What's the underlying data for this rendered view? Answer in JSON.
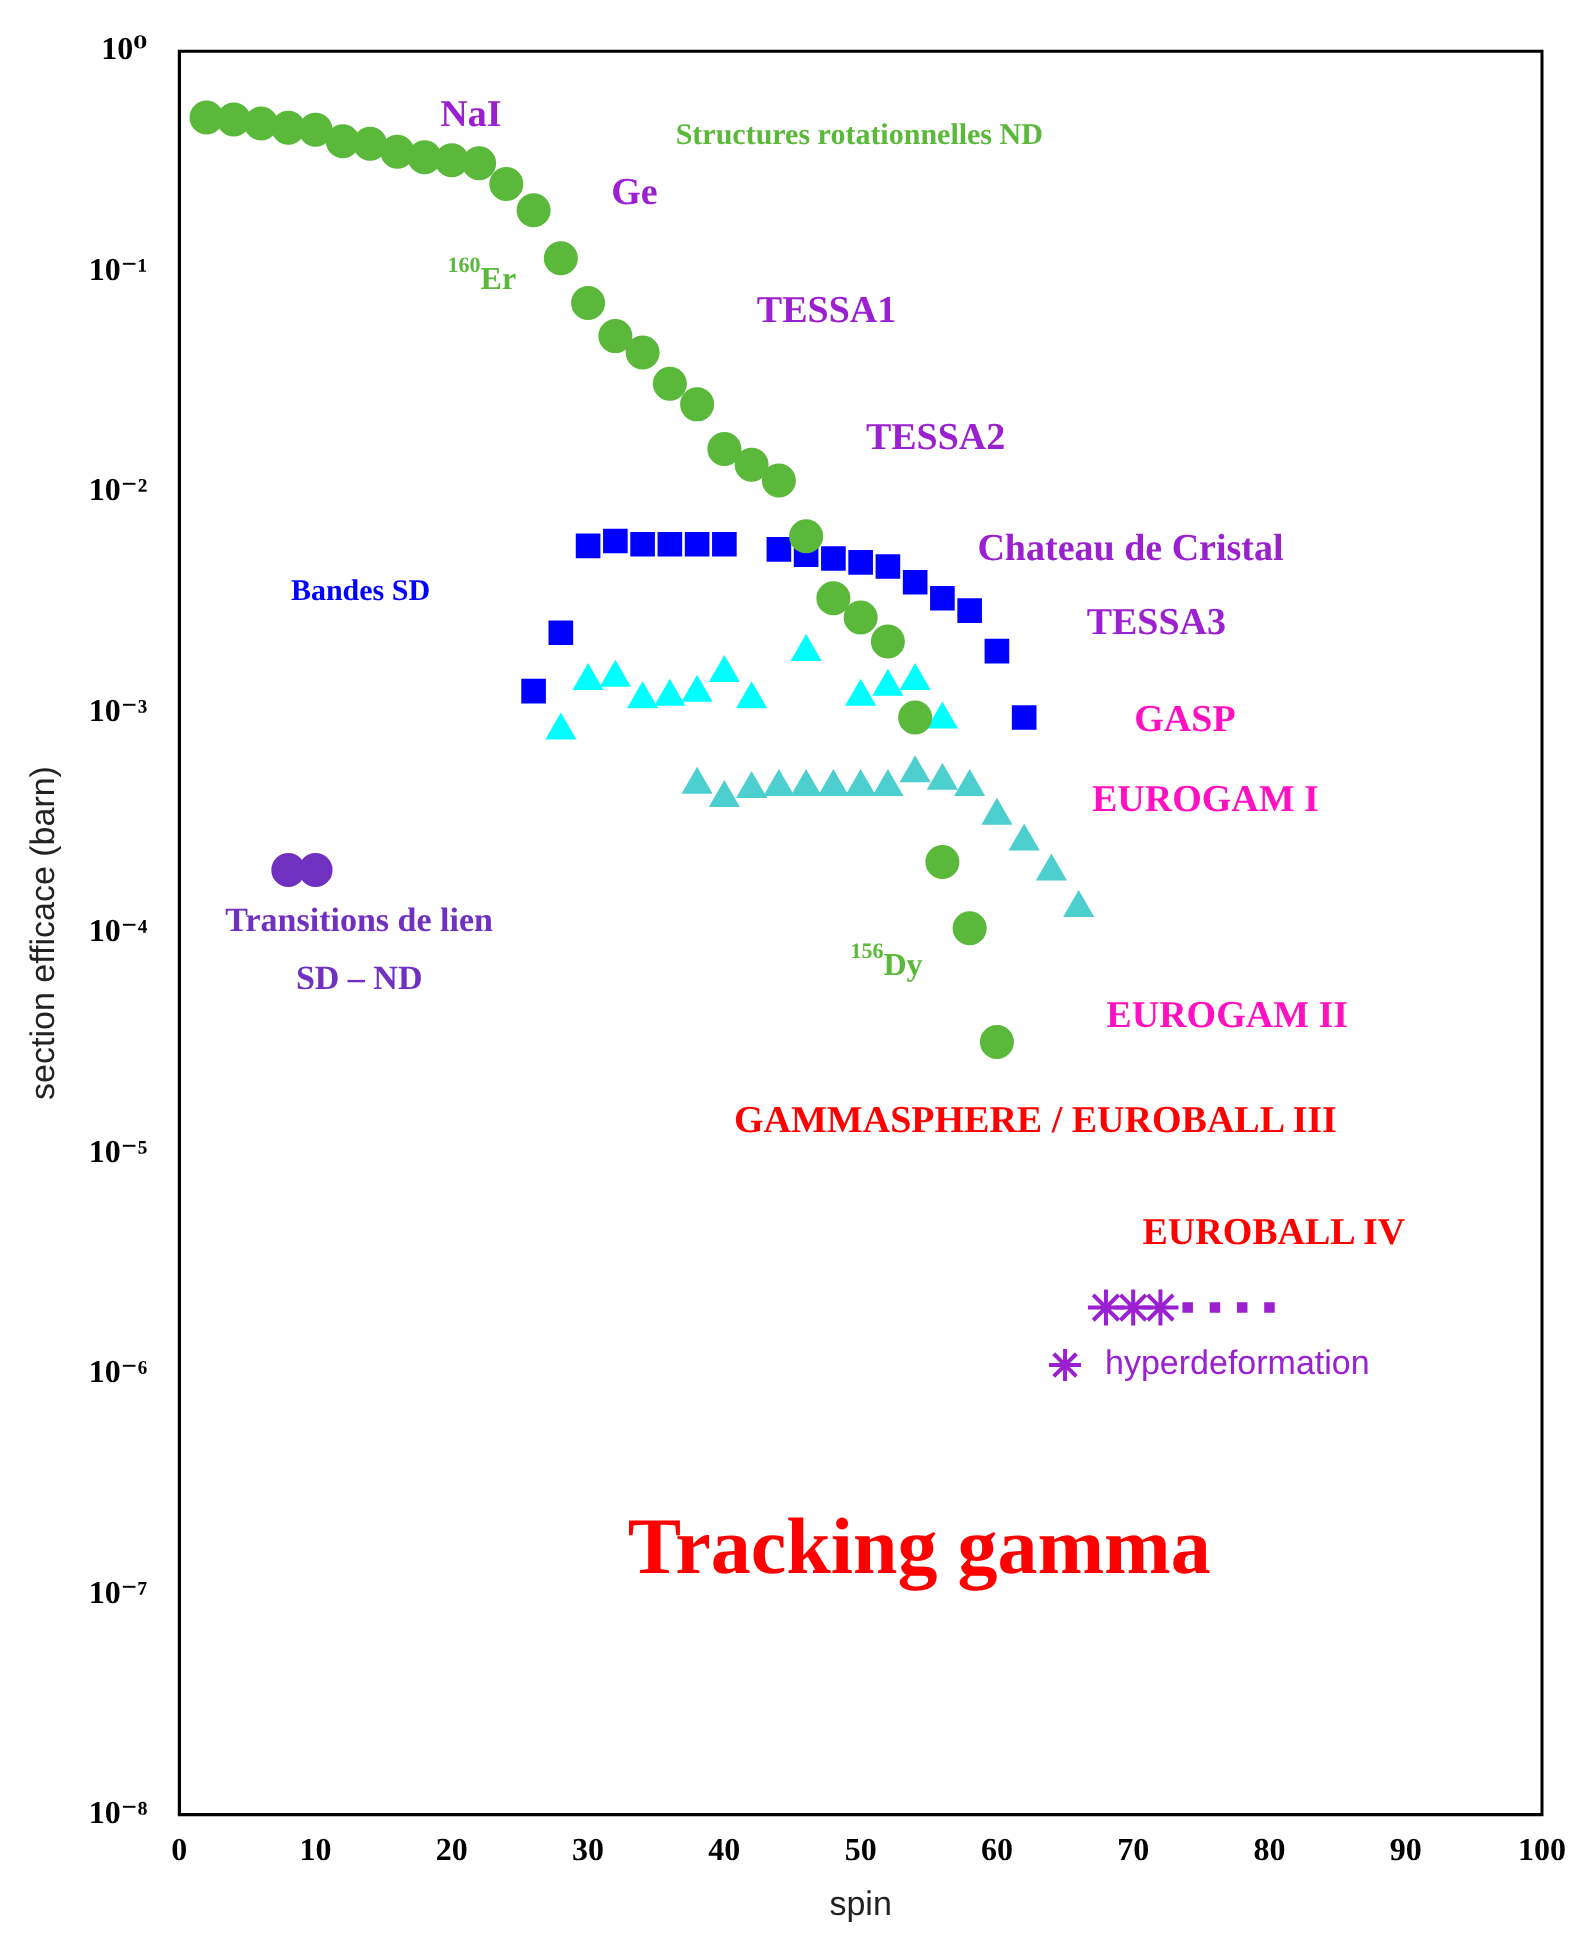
{
  "chart_data": {
    "type": "scatter",
    "xlabel": "spin",
    "ylabel": "section efficace (barn)",
    "log": "y",
    "grid": false,
    "legend": "right",
    "xlim": [
      0,
      100
    ],
    "xticks": [
      0,
      10,
      20,
      30,
      40,
      50,
      60,
      70,
      80,
      90,
      100
    ],
    "ylim": [
      1e-08,
      1
    ],
    "yticks": [
      {
        "value": 1e-08,
        "label": "10⁻⁸"
      },
      {
        "value": 1e-07,
        "label": "10⁻⁷"
      },
      {
        "value": 1e-06,
        "label": "10⁻⁶"
      },
      {
        "value": 1e-05,
        "label": "10⁻⁵"
      },
      {
        "value": 0.0001,
        "label": "10⁻⁴"
      },
      {
        "value": 0.001,
        "label": "10⁻³"
      },
      {
        "value": 0.01,
        "label": "10⁻²"
      },
      {
        "value": 0.1,
        "label": "10⁻¹"
      },
      {
        "value": 1,
        "label": "10⁰"
      }
    ],
    "series": [
      {
        "color": "#5ab83a",
        "marker": "circle",
        "x": [
          2,
          4,
          6,
          8,
          10,
          12,
          14,
          16,
          18,
          20,
          22,
          24,
          26,
          28,
          30,
          32,
          34,
          36,
          38,
          40,
          42,
          44,
          46,
          48,
          50,
          52,
          54,
          56,
          58,
          60
        ],
        "values": [
          0.5,
          0.49,
          0.47,
          0.45,
          0.44,
          0.39,
          0.38,
          0.35,
          0.33,
          0.32,
          0.31,
          0.25,
          0.19,
          0.115,
          0.072,
          0.051,
          0.043,
          0.031,
          0.025,
          0.0157,
          0.0133,
          0.0113,
          0.0063,
          0.0033,
          0.0027,
          0.0021,
          0.00095,
          0.00021,
          0.000105,
          3.2e-05
        ]
      },
      {
        "color": "#0000ff",
        "marker": "square",
        "x": [
          26,
          28,
          30,
          32,
          34,
          36,
          38,
          40,
          44,
          46,
          48,
          50,
          52,
          54,
          56,
          58,
          60,
          62
        ],
        "values": [
          0.00125,
          0.0023,
          0.0057,
          0.006,
          0.0058,
          0.0058,
          0.0058,
          0.0058,
          0.0055,
          0.0052,
          0.005,
          0.0048,
          0.0046,
          0.0039,
          0.0033,
          0.0029,
          0.0019,
          0.00095
        ]
      },
      {
        "color": "#00ffff",
        "marker": "triangle",
        "x": [
          28,
          30,
          32,
          34,
          36,
          38,
          40,
          42,
          46,
          50,
          52,
          54,
          56
        ],
        "values": [
          0.00083,
          0.00139,
          0.00144,
          0.00115,
          0.00118,
          0.00123,
          0.00151,
          0.00115,
          0.00188,
          0.00118,
          0.00131,
          0.00139,
          0.00093
        ]
      },
      {
        "color": "#4dcfcf",
        "marker": "triangle",
        "x": [
          38,
          40,
          42,
          44,
          46,
          48,
          50,
          52,
          54,
          56,
          58,
          60,
          62,
          64,
          66
        ],
        "values": [
          0.00047,
          0.00041,
          0.00045,
          0.00046,
          0.00046,
          0.00046,
          0.00046,
          0.00046,
          0.00053,
          0.00049,
          0.00046,
          0.00034,
          0.00026,
          0.00019,
          0.00013
        ]
      },
      {
        "color": "#7030c0",
        "marker": "circle",
        "x": [
          8,
          10
        ],
        "values": [
          0.000193,
          0.000193
        ]
      },
      {
        "name": "hyperdeformation",
        "color": "#9a20d0",
        "marker": "cross",
        "x": [
          68,
          70,
          72
        ],
        "values": [
          2e-06,
          2e-06,
          2e-06
        ]
      },
      {
        "color": "#9a20d0",
        "marker": "square",
        "x": [
          74,
          76,
          78,
          80
        ],
        "values": [
          2e-06,
          2e-06,
          2e-06,
          2e-06
        ]
      }
    ],
    "annotations": [
      "NaI",
      "Structures rotationnelles ND",
      "Ge",
      "$^{160}$Er",
      "TESSA1",
      "TESSA2",
      "Chateau de Cristal",
      "Bandes SD",
      "TESSA3",
      "GASP",
      "EUROGAM I",
      "Transitions de lien",
      "SD – ND",
      "$^{156}$Dy",
      "EUROGAM II",
      "GAMMASPHERE / EUROBALL III",
      "EUROBALL IV",
      "Tracking gamma"
    ]
  }
}
